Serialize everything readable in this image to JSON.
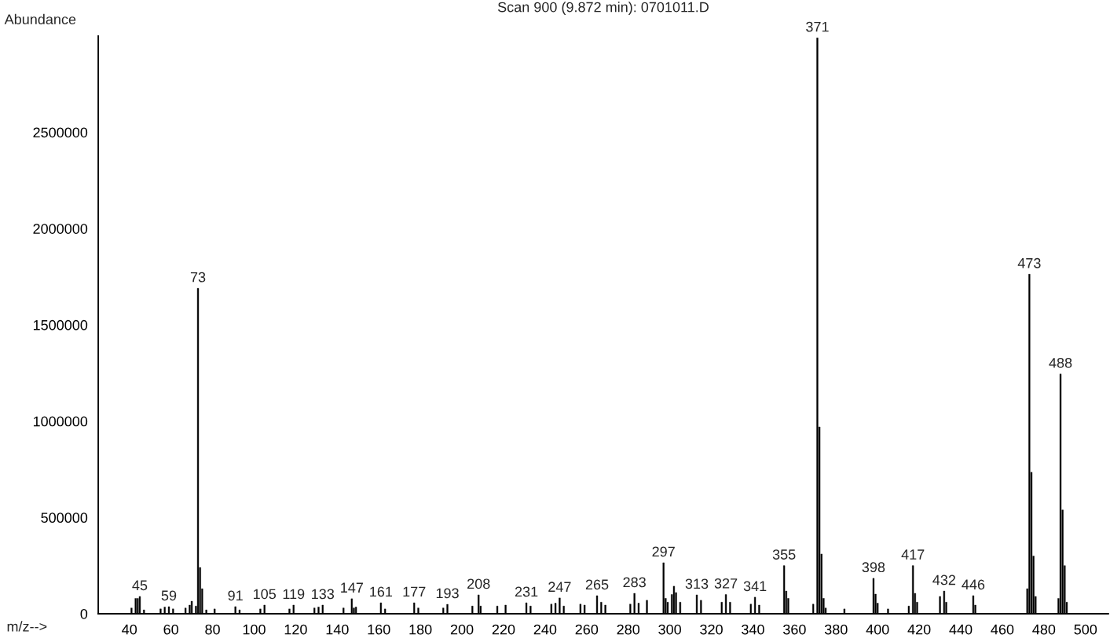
{
  "chart_data": {
    "type": "bar",
    "title": "Scan 900 (9.872 min): 0701011.D",
    "xlabel": "m/z-->",
    "ylabel": "Abundance",
    "x": [
      41,
      43,
      44,
      45,
      47,
      55,
      57,
      59,
      61,
      67,
      69,
      70,
      72,
      73,
      74,
      75,
      77,
      81,
      91,
      93,
      103,
      105,
      117,
      119,
      129,
      131,
      133,
      143,
      147,
      148,
      149,
      161,
      163,
      177,
      179,
      191,
      193,
      205,
      208,
      209,
      217,
      221,
      231,
      233,
      243,
      245,
      247,
      249,
      257,
      259,
      265,
      267,
      269,
      281,
      283,
      285,
      289,
      297,
      298,
      299,
      301,
      302,
      303,
      305,
      313,
      315,
      325,
      327,
      329,
      339,
      341,
      343,
      355,
      356,
      357,
      369,
      371,
      372,
      373,
      374,
      375,
      384,
      398,
      399,
      400,
      405,
      415,
      417,
      418,
      419,
      430,
      432,
      433,
      446,
      447,
      472,
      473,
      474,
      475,
      476,
      487,
      488,
      489,
      490,
      491
    ],
    "values": [
      30000,
      80000,
      80000,
      90000,
      20000,
      25000,
      35000,
      37000,
      25000,
      30000,
      45000,
      65000,
      40000,
      1690000,
      240000,
      130000,
      20000,
      25000,
      37000,
      20000,
      25000,
      45000,
      25000,
      45000,
      30000,
      35000,
      45000,
      30000,
      78000,
      30000,
      35000,
      57000,
      25000,
      57000,
      30000,
      30000,
      49000,
      40000,
      98000,
      40000,
      40000,
      45000,
      57000,
      40000,
      50000,
      55000,
      82000,
      40000,
      50000,
      45000,
      94000,
      60000,
      45000,
      50000,
      106000,
      55000,
      70000,
      265000,
      80000,
      60000,
      100000,
      143000,
      110000,
      60000,
      98000,
      70000,
      60000,
      100000,
      60000,
      50000,
      86000,
      45000,
      250000,
      118000,
      80000,
      50000,
      2990000,
      970000,
      310000,
      80000,
      30000,
      25000,
      184000,
      102000,
      55000,
      25000,
      40000,
      250000,
      106000,
      60000,
      90000,
      118000,
      60000,
      94000,
      45000,
      130000,
      1763000,
      735000,
      300000,
      90000,
      80000,
      1245000,
      539000,
      250000,
      60000
    ],
    "annotations": [
      {
        "text": "45",
        "x": 45,
        "y": 90000
      },
      {
        "text": "59",
        "x": 59,
        "y": 37000
      },
      {
        "text": "73",
        "x": 73,
        "y": 1690000
      },
      {
        "text": "91",
        "x": 91,
        "y": 37000
      },
      {
        "text": "105",
        "x": 105,
        "y": 45000
      },
      {
        "text": "119",
        "x": 119,
        "y": 45000
      },
      {
        "text": "133",
        "x": 133,
        "y": 45000
      },
      {
        "text": "147",
        "x": 147,
        "y": 78000
      },
      {
        "text": "161",
        "x": 161,
        "y": 57000
      },
      {
        "text": "177",
        "x": 177,
        "y": 57000
      },
      {
        "text": "193",
        "x": 193,
        "y": 49000
      },
      {
        "text": "208",
        "x": 208,
        "y": 98000
      },
      {
        "text": "231",
        "x": 231,
        "y": 57000
      },
      {
        "text": "247",
        "x": 247,
        "y": 82000
      },
      {
        "text": "265",
        "x": 265,
        "y": 94000
      },
      {
        "text": "283",
        "x": 283,
        "y": 106000
      },
      {
        "text": "297",
        "x": 297,
        "y": 265000
      },
      {
        "text": "313",
        "x": 313,
        "y": 98000
      },
      {
        "text": "327",
        "x": 327,
        "y": 100000
      },
      {
        "text": "341",
        "x": 341,
        "y": 86000
      },
      {
        "text": "355",
        "x": 355,
        "y": 250000
      },
      {
        "text": "371",
        "x": 371,
        "y": 2990000
      },
      {
        "text": "398",
        "x": 398,
        "y": 184000
      },
      {
        "text": "417",
        "x": 417,
        "y": 250000
      },
      {
        "text": "432",
        "x": 432,
        "y": 118000
      },
      {
        "text": "446",
        "x": 446,
        "y": 94000
      },
      {
        "text": "473",
        "x": 473,
        "y": 1763000
      },
      {
        "text": "488",
        "x": 488,
        "y": 1245000
      }
    ],
    "color": "#000000",
    "xlim": [
      25,
      511
    ],
    "xticks": [
      40,
      60,
      80,
      100,
      120,
      140,
      160,
      180,
      200,
      220,
      240,
      260,
      280,
      300,
      320,
      340,
      360,
      380,
      400,
      420,
      440,
      460,
      480,
      500
    ],
    "ylim": [
      0,
      3000000
    ],
    "yticks": [
      0,
      500000,
      1000000,
      1500000,
      2000000,
      2500000
    ],
    "grid": false,
    "legend": false
  }
}
